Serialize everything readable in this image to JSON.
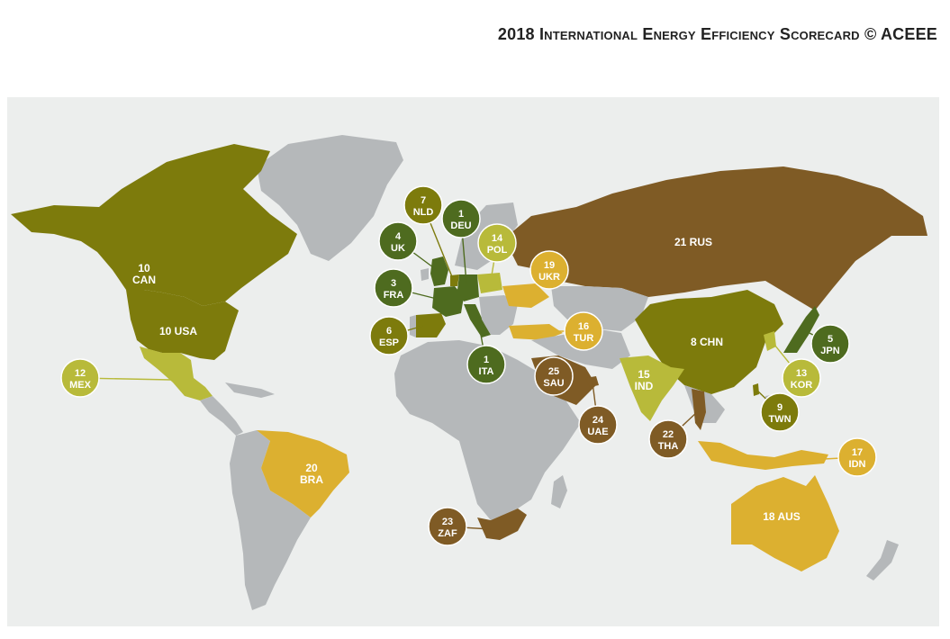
{
  "title": {
    "year": "2018",
    "words": [
      {
        "cap": "I",
        "rest": "nternational"
      },
      {
        "cap": "E",
        "rest": "nergy"
      },
      {
        "cap": "E",
        "rest": "fficiency"
      },
      {
        "cap": "S",
        "rest": "corecard"
      }
    ],
    "suffix": "© ACEEE"
  },
  "colors": {
    "ocean": "#eceeed",
    "no_data": "#b5b8ba",
    "tier_dark_green": "#4e6b1f",
    "tier_olive": "#7d7b0c",
    "tier_light_olive": "#b8ba3a",
    "tier_gold": "#dcb030",
    "tier_brown": "#7f5b25"
  },
  "countries": [
    {
      "rank": "1",
      "code": "DEU",
      "tier": "tier_dark_green"
    },
    {
      "rank": "1",
      "code": "ITA",
      "tier": "tier_dark_green"
    },
    {
      "rank": "3",
      "code": "FRA",
      "tier": "tier_dark_green"
    },
    {
      "rank": "4",
      "code": "UK",
      "tier": "tier_dark_green"
    },
    {
      "rank": "5",
      "code": "JPN",
      "tier": "tier_dark_green"
    },
    {
      "rank": "6",
      "code": "ESP",
      "tier": "tier_olive"
    },
    {
      "rank": "7",
      "code": "NLD",
      "tier": "tier_olive"
    },
    {
      "rank": "8",
      "code": "CHN",
      "tier": "tier_olive"
    },
    {
      "rank": "9",
      "code": "TWN",
      "tier": "tier_olive"
    },
    {
      "rank": "10",
      "code": "CAN",
      "tier": "tier_olive"
    },
    {
      "rank": "10",
      "code": "USA",
      "tier": "tier_olive"
    },
    {
      "rank": "12",
      "code": "MEX",
      "tier": "tier_light_olive"
    },
    {
      "rank": "13",
      "code": "KOR",
      "tier": "tier_light_olive"
    },
    {
      "rank": "14",
      "code": "POL",
      "tier": "tier_light_olive"
    },
    {
      "rank": "15",
      "code": "IND",
      "tier": "tier_light_olive"
    },
    {
      "rank": "16",
      "code": "TUR",
      "tier": "tier_gold"
    },
    {
      "rank": "17",
      "code": "IDN",
      "tier": "tier_gold"
    },
    {
      "rank": "18",
      "code": "AUS",
      "tier": "tier_gold"
    },
    {
      "rank": "19",
      "code": "UKR",
      "tier": "tier_gold"
    },
    {
      "rank": "20",
      "code": "BRA",
      "tier": "tier_gold"
    },
    {
      "rank": "21",
      "code": "RUS",
      "tier": "tier_brown"
    },
    {
      "rank": "22",
      "code": "THA",
      "tier": "tier_brown"
    },
    {
      "rank": "23",
      "code": "ZAF",
      "tier": "tier_brown"
    },
    {
      "rank": "24",
      "code": "UAE",
      "tier": "tier_brown"
    },
    {
      "rank": "25",
      "code": "SAU",
      "tier": "tier_brown"
    }
  ]
}
